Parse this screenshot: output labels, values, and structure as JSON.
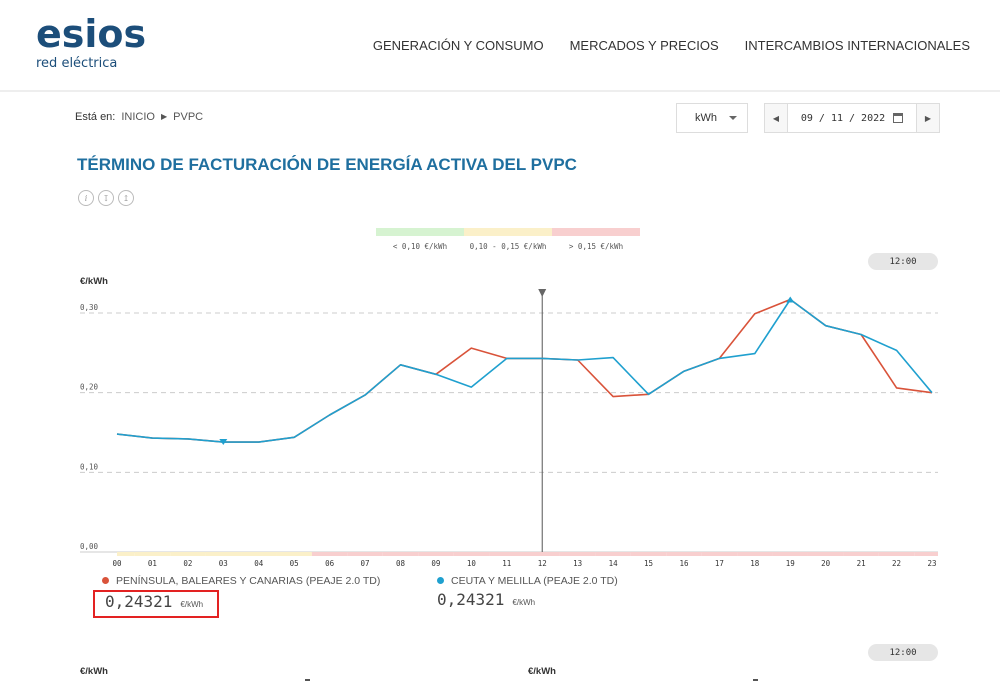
{
  "header": {
    "logo_main": "esios",
    "logo_sub": "red eléctrica",
    "nav": [
      "GENERACIÓN Y CONSUMO",
      "MERCADOS Y PRECIOS",
      "INTERCAMBIOS INTERNACIONALES"
    ]
  },
  "breadcrumb": {
    "label": "Está en:",
    "items": [
      "INICIO",
      "PVPC"
    ]
  },
  "controls": {
    "unit": "kWh",
    "date": "09 / 11 / 2022"
  },
  "page_title": "TÉRMINO DE FACTURACIÓN DE ENERGÍA ACTIVA DEL PVPC",
  "legend_ranges": [
    {
      "label": "< 0,10 €/kWh",
      "color": "#d6f3d1"
    },
    {
      "label": "0,10 - 0,15 €/kWh",
      "color": "#fbf0c9"
    },
    {
      "label": "> 0,15 €/kWh",
      "color": "#f8cfcf"
    }
  ],
  "time_pill": "12:00",
  "time_pill_2": "12:00",
  "axis_unit": "€/kWh",
  "axis_unit_2a": "€/kWh",
  "axis_unit_2b": "€/kWh",
  "chart_data": {
    "type": "line",
    "x": [
      "00",
      "01",
      "02",
      "03",
      "04",
      "05",
      "06",
      "07",
      "08",
      "09",
      "10",
      "11",
      "12",
      "13",
      "14",
      "15",
      "16",
      "17",
      "18",
      "19",
      "20",
      "21",
      "22",
      "23"
    ],
    "yticks": [
      "0,00",
      "0,10",
      "0,20",
      "0,30"
    ],
    "ylim": [
      0,
      0.3
    ],
    "grid": true,
    "cursor_hour": 12,
    "series": [
      {
        "name": "PENÍNSULA, BALEARES Y CANARIAS (PEAJE 2.0 TD)",
        "color": "#d9533a",
        "values": [
          0.148,
          0.143,
          0.142,
          0.138,
          0.138,
          0.144,
          0.172,
          0.197,
          0.235,
          0.223,
          0.256,
          0.243,
          0.243,
          0.241,
          0.195,
          0.198,
          0.227,
          0.243,
          0.299,
          0.317,
          0.284,
          0.273,
          0.206,
          0.2
        ]
      },
      {
        "name": "CEUTA Y MELILLA (PEAJE 2.0 TD)",
        "color": "#1fa0cf",
        "values": [
          0.148,
          0.143,
          0.142,
          0.138,
          0.138,
          0.144,
          0.172,
          0.197,
          0.235,
          0.223,
          0.207,
          0.243,
          0.243,
          0.241,
          0.244,
          0.198,
          0.227,
          0.243,
          0.249,
          0.317,
          0.284,
          0.273,
          0.253,
          0.2
        ]
      }
    ],
    "hour_band_colors": [
      "#fbf0c9",
      "#fbf0c9",
      "#fbf0c9",
      "#fbf0c9",
      "#fbf0c9",
      "#fbf0c9",
      "#f8cfcf",
      "#f8cfcf",
      "#f8cfcf",
      "#f8cfcf",
      "#f8cfcf",
      "#f8cfcf",
      "#f8cfcf",
      "#f8cfcf",
      "#f8cfcf",
      "#f8cfcf",
      "#f8cfcf",
      "#f8cfcf",
      "#f8cfcf",
      "#f8cfcf",
      "#f8cfcf",
      "#f8cfcf",
      "#f8cfcf",
      "#f8cfcf"
    ],
    "min_marker_hour": 3,
    "max_marker_hour": 19
  },
  "series_info": [
    {
      "name": "PENÍNSULA, BALEARES Y CANARIAS (PEAJE 2.0 TD)",
      "value": "0,24321",
      "unit": "€/kWh",
      "color": "#d9533a"
    },
    {
      "name": "CEUTA Y MELILLA (PEAJE 2.0 TD)",
      "value": "0,24321",
      "unit": "€/kWh",
      "color": "#1fa0cf"
    }
  ]
}
